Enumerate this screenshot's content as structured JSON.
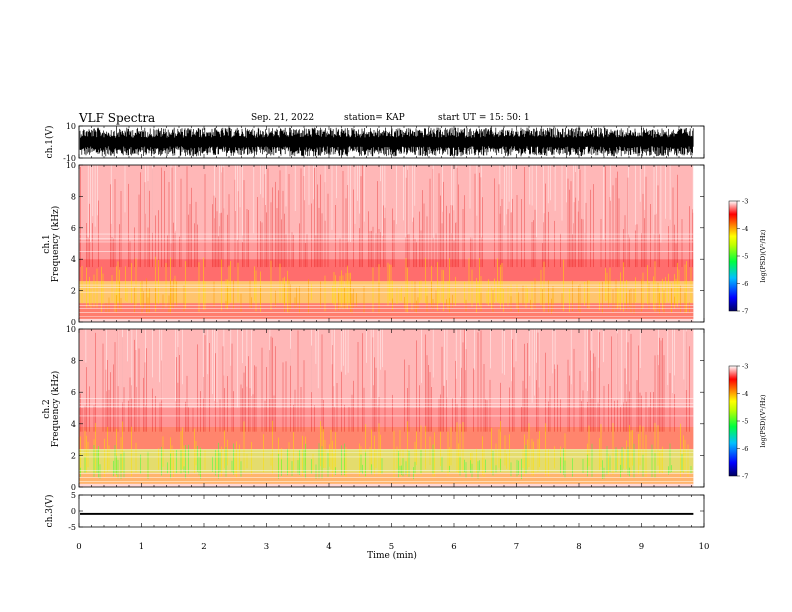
{
  "header": {
    "title": "VLF Spectra",
    "date": "Sep. 21, 2022",
    "station": "station= KAP",
    "start": "start  UT  =   15: 50: 1"
  },
  "colors": {
    "spectrum": [
      "#000080",
      "#0000ff",
      "#00a0ff",
      "#00ff60",
      "#a0ff00",
      "#ffff00",
      "#ffa000",
      "#ff0000",
      "#ffffff"
    ],
    "frame": "#000000"
  },
  "chart_data": [
    {
      "type": "line",
      "name": "ch1-waveform",
      "ylabel": "ch.1(V)",
      "ylim": [
        -10,
        10
      ],
      "yticks": [
        "10",
        "-10"
      ],
      "x_extent_min": 9.83,
      "note_amplitude_range": [
        -9,
        9
      ]
    },
    {
      "type": "heatmap",
      "name": "ch1-spectrogram",
      "ylabel_channel": "ch.1",
      "ylabel": "Frequency  (kHz)",
      "ylim": [
        0,
        10
      ],
      "yticks": [
        "0",
        "2",
        "4",
        "6",
        "8",
        "10"
      ],
      "x_extent_min": 9.83,
      "colorbar": {
        "label": "log(PSD)(V²/Hz)",
        "range": [
          -7,
          -3
        ],
        "ticks": [
          "-3",
          "-4",
          "-5",
          "-6",
          "-7"
        ]
      }
    },
    {
      "type": "heatmap",
      "name": "ch2-spectrogram",
      "ylabel_channel": "ch.2",
      "ylabel": "Frequency  (kHz)",
      "ylim": [
        0,
        10
      ],
      "yticks": [
        "0",
        "2",
        "4",
        "6",
        "8",
        "10"
      ],
      "x_extent_min": 9.83,
      "colorbar": {
        "label": "log(PSD)(V²/Hz)",
        "range": [
          -7,
          -3
        ],
        "ticks": [
          "-3",
          "-4",
          "-5",
          "-6",
          "-7"
        ]
      }
    },
    {
      "type": "line",
      "name": "ch3-waveform",
      "ylabel": "ch.3(V)",
      "ylim": [
        -5,
        5
      ],
      "yticks": [
        "5",
        "0",
        "-5"
      ],
      "x_extent_min": 9.83,
      "note_amplitude_range": [
        -1.2,
        -0.6
      ]
    }
  ],
  "xaxis": {
    "xlabel": "Time  (min)",
    "xlim": [
      0,
      10
    ],
    "ticks": [
      "0",
      "1",
      "2",
      "3",
      "4",
      "5",
      "6",
      "7",
      "8",
      "9",
      "10"
    ]
  }
}
